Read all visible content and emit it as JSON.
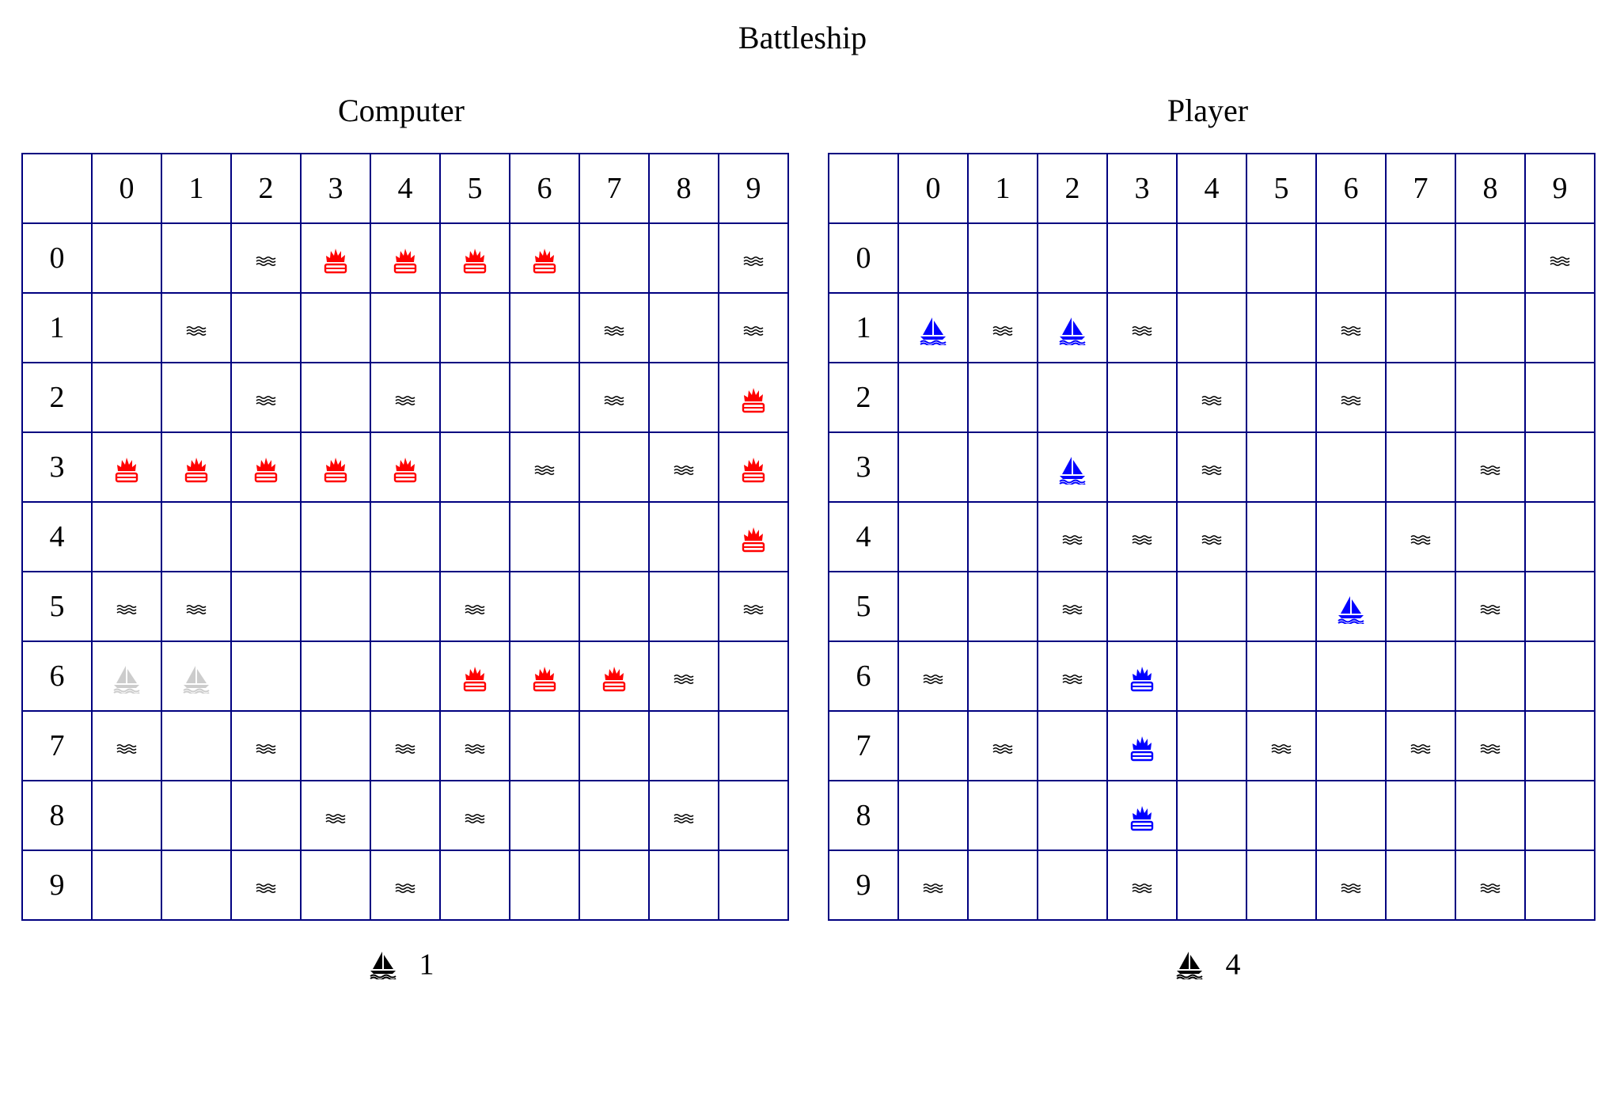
{
  "title": "Battleship",
  "colors": {
    "grid": "#000080",
    "hit_computer_board": "#ff0000",
    "hit_player_board": "#0000ff",
    "player_ship": "#0000ff",
    "revealed_ship": "#cccccc",
    "miss": "#000000"
  },
  "legend": {
    "miss": "water-icon",
    "hit": "explosion-icon",
    "ship": "sailboat-icon"
  },
  "boards": [
    {
      "id": "computer",
      "title": "Computer",
      "col_headers": [
        "0",
        "1",
        "2",
        "3",
        "4",
        "5",
        "6",
        "7",
        "8",
        "9"
      ],
      "row_headers": [
        "0",
        "1",
        "2",
        "3",
        "4",
        "5",
        "6",
        "7",
        "8",
        "9"
      ],
      "cells": [
        [
          "",
          "",
          "miss",
          "hit",
          "hit",
          "hit",
          "hit",
          "",
          "",
          "miss"
        ],
        [
          "",
          "miss",
          "",
          "",
          "",
          "",
          "",
          "miss",
          "",
          "miss"
        ],
        [
          "",
          "",
          "miss",
          "",
          "miss",
          "",
          "",
          "miss",
          "",
          "hit"
        ],
        [
          "hit",
          "hit",
          "hit",
          "hit",
          "hit",
          "",
          "miss",
          "",
          "miss",
          "hit"
        ],
        [
          "",
          "",
          "",
          "",
          "",
          "",
          "",
          "",
          "",
          "hit"
        ],
        [
          "miss",
          "miss",
          "",
          "",
          "",
          "miss",
          "",
          "",
          "",
          "miss"
        ],
        [
          "ship_gray",
          "ship_gray",
          "",
          "",
          "",
          "hit",
          "hit",
          "hit",
          "miss",
          ""
        ],
        [
          "miss",
          "",
          "miss",
          "",
          "miss",
          "miss",
          "",
          "",
          "",
          ""
        ],
        [
          "",
          "",
          "",
          "miss",
          "",
          "miss",
          "",
          "",
          "miss",
          ""
        ],
        [
          "",
          "",
          "miss",
          "",
          "miss",
          "",
          "",
          "",
          "",
          ""
        ]
      ],
      "ships_remaining": "1"
    },
    {
      "id": "player",
      "title": "Player",
      "col_headers": [
        "0",
        "1",
        "2",
        "3",
        "4",
        "5",
        "6",
        "7",
        "8",
        "9"
      ],
      "row_headers": [
        "0",
        "1",
        "2",
        "3",
        "4",
        "5",
        "6",
        "7",
        "8",
        "9"
      ],
      "cells": [
        [
          "",
          "",
          "",
          "",
          "",
          "",
          "",
          "",
          "",
          "miss"
        ],
        [
          "ship",
          "miss",
          "ship",
          "miss",
          "",
          "",
          "miss",
          "",
          "",
          ""
        ],
        [
          "",
          "",
          "",
          "",
          "miss",
          "",
          "miss",
          "",
          "",
          ""
        ],
        [
          "",
          "",
          "ship",
          "",
          "miss",
          "",
          "",
          "",
          "miss",
          ""
        ],
        [
          "",
          "",
          "miss",
          "miss",
          "miss",
          "",
          "",
          "miss",
          "",
          ""
        ],
        [
          "",
          "",
          "miss",
          "",
          "",
          "",
          "ship",
          "",
          "miss",
          ""
        ],
        [
          "miss",
          "",
          "miss",
          "hit",
          "",
          "",
          "",
          "",
          "",
          ""
        ],
        [
          "",
          "miss",
          "",
          "hit",
          "",
          "miss",
          "",
          "miss",
          "miss",
          ""
        ],
        [
          "",
          "",
          "",
          "hit",
          "",
          "",
          "",
          "",
          "",
          ""
        ],
        [
          "miss",
          "",
          "",
          "miss",
          "",
          "",
          "miss",
          "",
          "miss",
          ""
        ]
      ],
      "ships_remaining": "4"
    }
  ]
}
